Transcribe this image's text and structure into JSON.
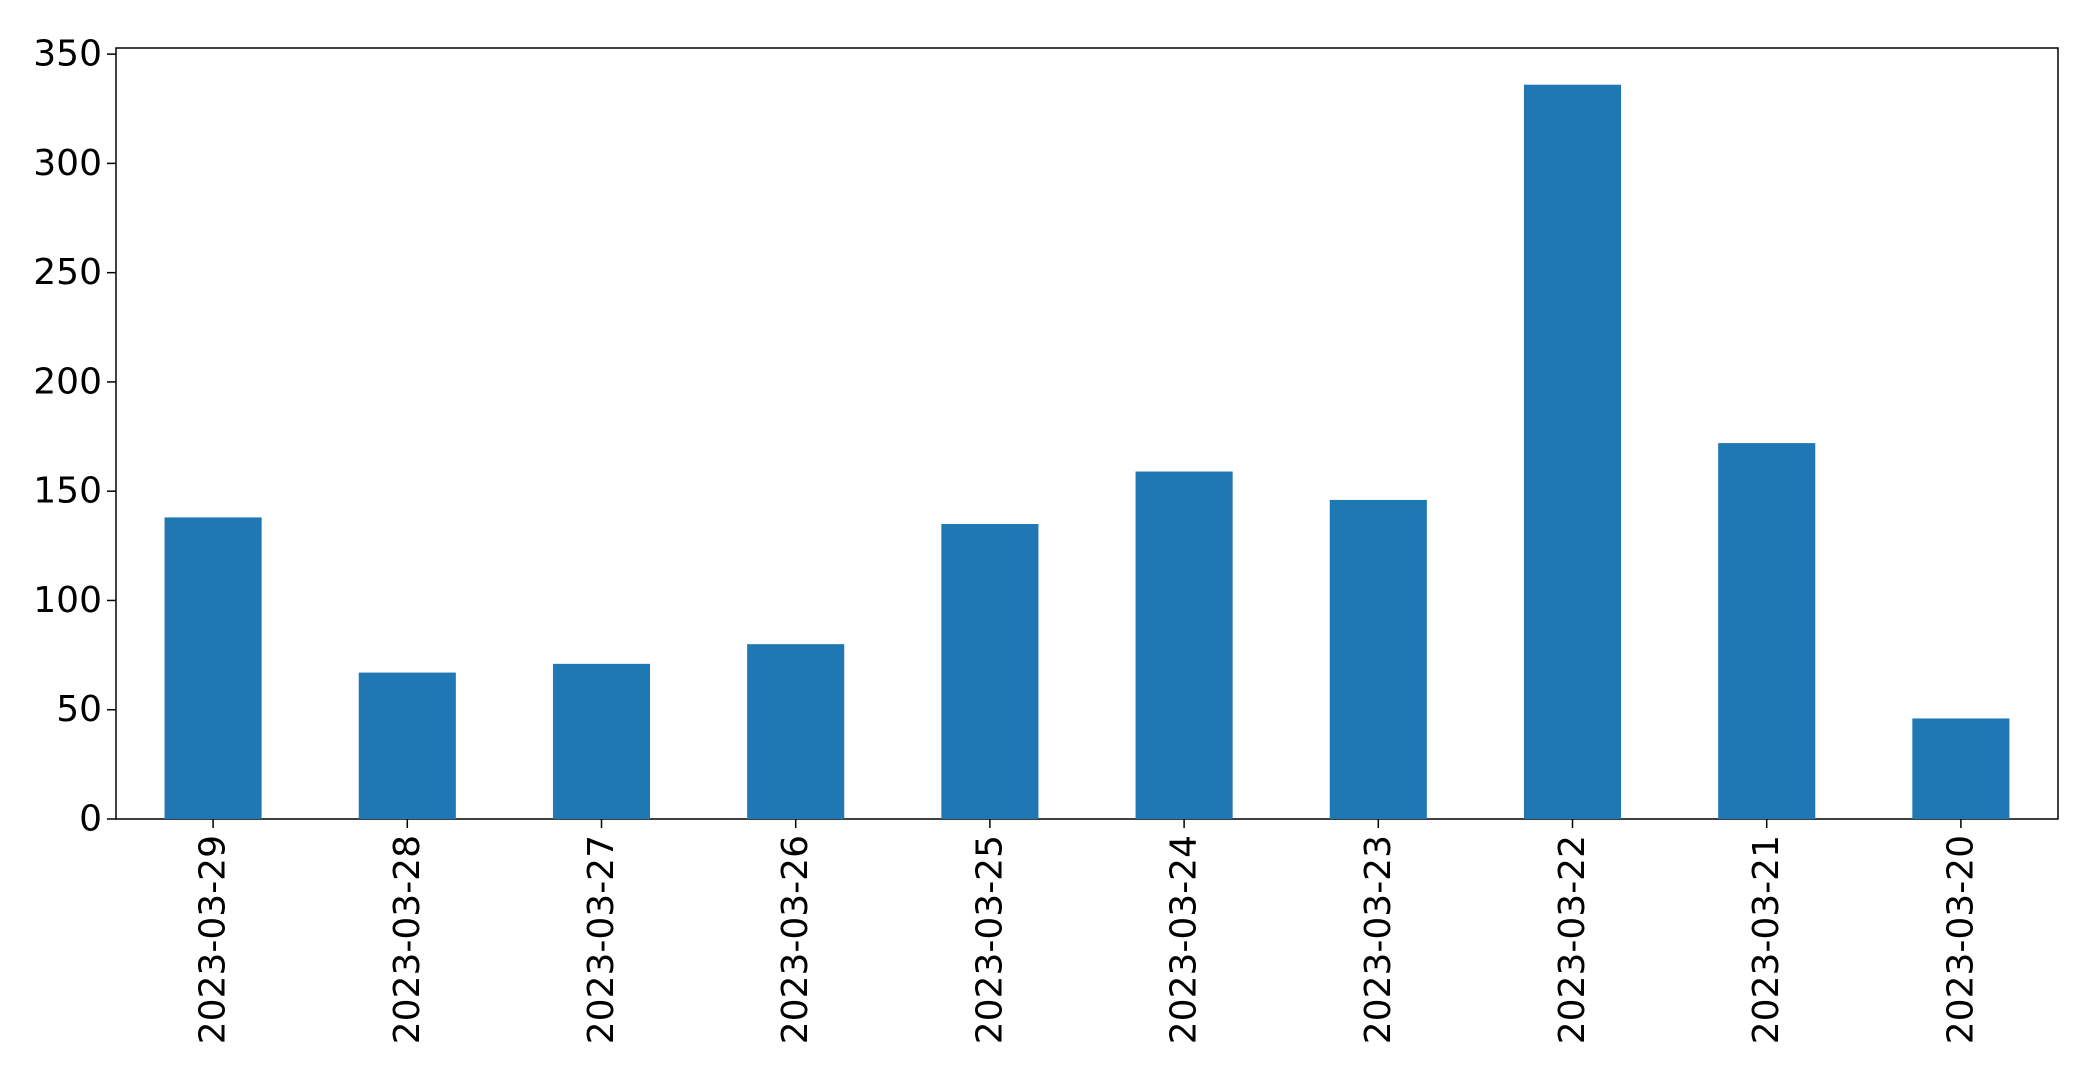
{
  "chart_data": {
    "type": "bar",
    "title": "",
    "xlabel": "",
    "ylabel": "",
    "categories": [
      "2023-03-29",
      "2023-03-28",
      "2023-03-27",
      "2023-03-26",
      "2023-03-25",
      "2023-03-24",
      "2023-03-23",
      "2023-03-22",
      "2023-03-21",
      "2023-03-20"
    ],
    "values": [
      138,
      67,
      71,
      80,
      135,
      159,
      146,
      336,
      172,
      46
    ],
    "ylim": [
      0,
      352.8
    ],
    "yticks": [
      0,
      50,
      100,
      150,
      200,
      250,
      300,
      350
    ],
    "bar_color": "#1f77b4",
    "grid": false,
    "legend": "none",
    "x_tick_rotation": "vertical"
  }
}
